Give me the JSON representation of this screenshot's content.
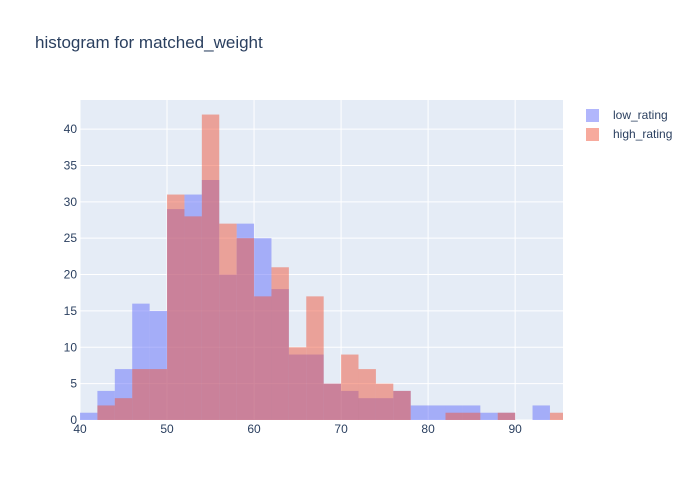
{
  "chart_data": {
    "type": "histogram",
    "title": "histogram for matched_weight",
    "xlabel": "",
    "ylabel": "",
    "xlim": [
      40,
      95.5
    ],
    "ylim": [
      0,
      44
    ],
    "x_ticks": [
      40,
      50,
      60,
      70,
      80,
      90
    ],
    "y_ticks": [
      0,
      5,
      10,
      15,
      20,
      25,
      30,
      35,
      40
    ],
    "grid": true,
    "legend_position": "top-right",
    "barmode": "overlay",
    "bin_starts": [
      40,
      42,
      44,
      46,
      48,
      50,
      52,
      54,
      56,
      58,
      60,
      62,
      64,
      66,
      68,
      70,
      72,
      74,
      76,
      78,
      80,
      82,
      84,
      86,
      88,
      90,
      92,
      94
    ],
    "bin_width": 2,
    "series": [
      {
        "name": "low_rating",
        "color": "#636efa",
        "values": [
          1,
          4,
          7,
          16,
          15,
          29,
          31,
          33,
          20,
          27,
          25,
          18,
          9,
          9,
          5,
          4,
          3,
          3,
          4,
          2,
          2,
          2,
          2,
          1,
          1,
          0,
          2,
          0
        ]
      },
      {
        "name": "high_rating",
        "color": "#ef553b",
        "values": [
          0,
          2,
          3,
          7,
          7,
          31,
          28,
          42,
          27,
          25,
          17,
          21,
          10,
          17,
          5,
          9,
          7,
          5,
          4,
          0,
          0,
          1,
          1,
          0,
          1,
          0,
          0,
          1
        ]
      }
    ]
  }
}
